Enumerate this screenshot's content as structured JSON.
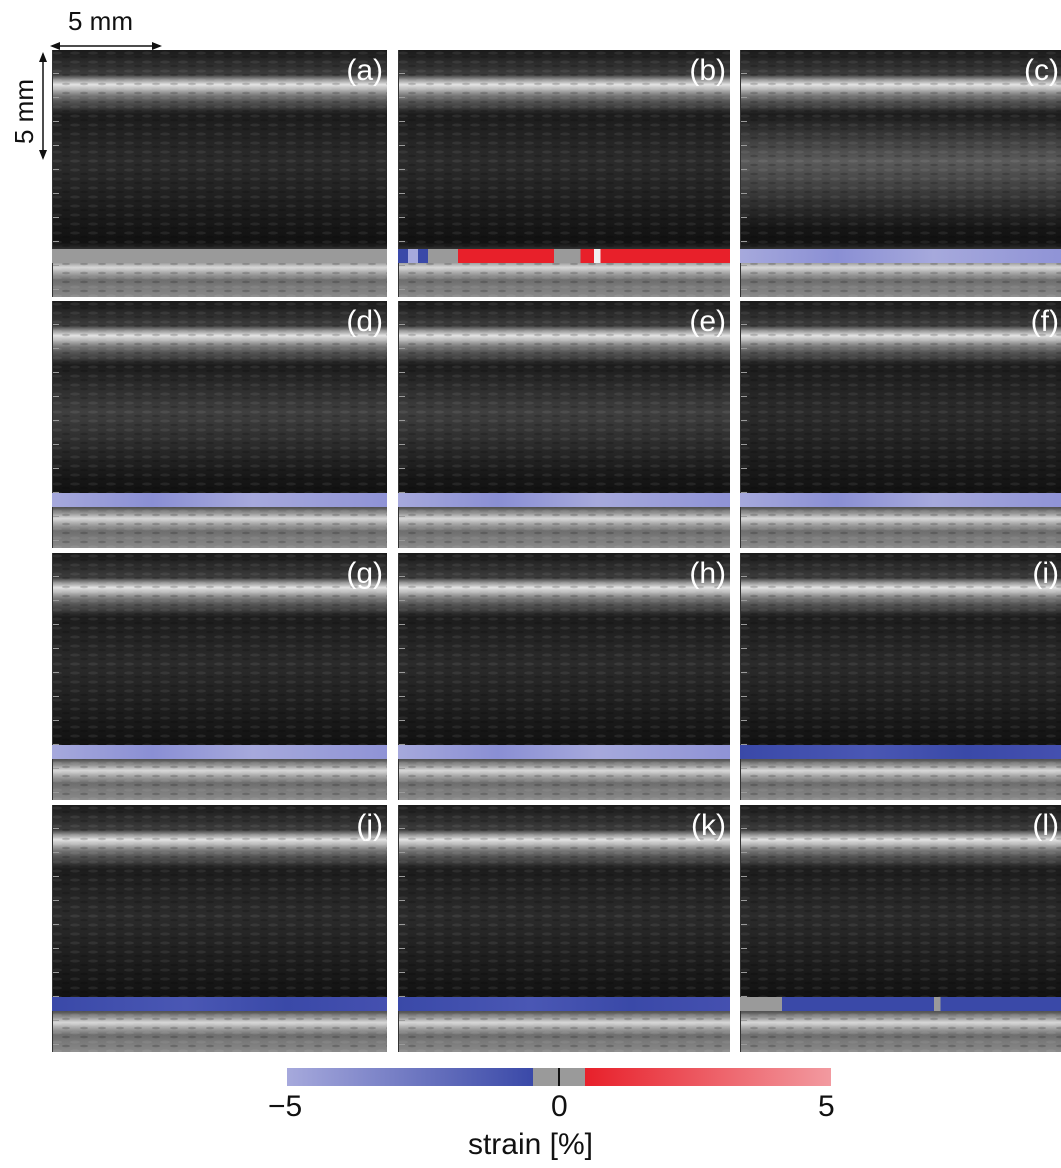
{
  "scale": {
    "horizontal_label": "5 mm",
    "vertical_label": "5 mm"
  },
  "panels": [
    {
      "label": "(a)",
      "strain_band": "gray"
    },
    {
      "label": "(b)",
      "strain_band": "red-mixed"
    },
    {
      "label": "(c)",
      "strain_band": "light-blue"
    },
    {
      "label": "(d)",
      "strain_band": "light-blue"
    },
    {
      "label": "(e)",
      "strain_band": "light-blue"
    },
    {
      "label": "(f)",
      "strain_band": "light-blue"
    },
    {
      "label": "(g)",
      "strain_band": "light-blue"
    },
    {
      "label": "(h)",
      "strain_band": "light-blue"
    },
    {
      "label": "(i)",
      "strain_band": "blue"
    },
    {
      "label": "(j)",
      "strain_band": "blue"
    },
    {
      "label": "(k)",
      "strain_band": "blue"
    },
    {
      "label": "(l)",
      "strain_band": "blue-mixed"
    }
  ],
  "colorbar": {
    "ticks": [
      "−5",
      "0",
      "5"
    ],
    "label": "strain [%]",
    "colors": {
      "neg": "#3a49a8",
      "neg_light": "#a6a9dc",
      "zero": "#9a9a9a",
      "pos": "#e8202a",
      "pos_light": "#f29aa0"
    }
  }
}
